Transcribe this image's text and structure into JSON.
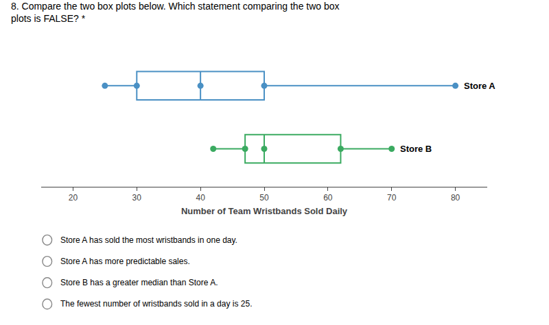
{
  "chart_data": {
    "type": "box",
    "title": "8. Compare the two box plots below. Which statement comparing the two box\nplots is FALSE? *",
    "xlabel": "Number of Team Wristbands Sold Daily",
    "series": [
      {
        "name": "Store A",
        "color": "#4a90c4",
        "min": 25,
        "q1": 30,
        "median": 40,
        "q3": 50,
        "max": 80
      },
      {
        "name": "Store B",
        "color": "#3aaa60",
        "min": 42,
        "q1": 47,
        "median": 50,
        "q3": 62,
        "max": 70
      }
    ],
    "xlim": [
      15,
      85
    ],
    "xticks": [
      20,
      30,
      40,
      50,
      60,
      70,
      80
    ],
    "grid": false,
    "annotations": [
      "Store A has sold the most wristbands in one day.",
      "Store A has more predictable sales.",
      "Store B has a greater median than Store A.",
      "The fewest number of wristbands sold in a day is 25."
    ]
  }
}
